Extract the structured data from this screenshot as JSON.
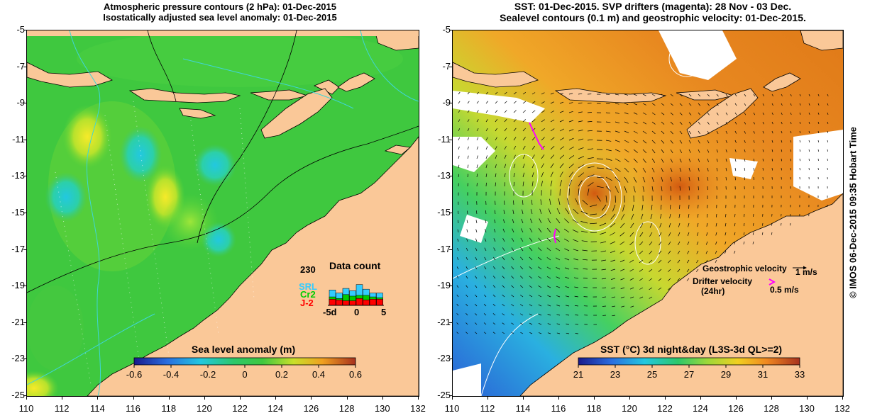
{
  "left_panel": {
    "title_line1": "Atmospheric pressure contours (2 hPa): 01-Dec-2015",
    "title_line2": "Isostatically adjusted sea level anomaly: 01-Dec-2015",
    "colorbar": {
      "title": "Sea level anomaly (m)",
      "ticks": [
        "-0.6",
        "-0.4",
        "-0.2",
        "0",
        "0.2",
        "0.4",
        "0.6"
      ]
    },
    "inset": {
      "title": "Data count",
      "max_label": "230",
      "series": [
        {
          "name": "SRL",
          "color": "#33ccff"
        },
        {
          "name": "Cr2",
          "color": "#00cc00"
        },
        {
          "name": "J-2",
          "color": "#ff0000"
        }
      ],
      "x_ticks": [
        "-5d",
        "0",
        "5"
      ],
      "bars": [
        {
          "j2": 40,
          "cr2": 55,
          "srl": 100
        },
        {
          "j2": 35,
          "cr2": 45,
          "srl": 80
        },
        {
          "j2": 30,
          "cr2": 70,
          "srl": 110
        },
        {
          "j2": 30,
          "cr2": 60,
          "srl": 95
        },
        {
          "j2": 45,
          "cr2": 65,
          "srl": 135
        },
        {
          "j2": 35,
          "cr2": 65,
          "srl": 105
        },
        {
          "j2": 40,
          "cr2": 55,
          "srl": 80
        },
        {
          "j2": 40,
          "cr2": 50,
          "srl": 80
        }
      ]
    }
  },
  "right_panel": {
    "title_line1": "SST: 01-Dec-2015. SVP drifters (magenta): 28 Nov - 03 Dec.",
    "title_line2": "Sealevel contours (0.1 m) and geostrophic velocity: 01-Dec-2015.",
    "colorbar": {
      "title": "SST (°C) 3d night&day (L3S-3d QL>=2)",
      "ticks": [
        "21",
        "23",
        "25",
        "27",
        "29",
        "31",
        "33"
      ]
    },
    "legend": {
      "geo_label": "Geostrophic velocity",
      "geo_value": "1 m/s",
      "drifter_label1": "Drifter velocity",
      "drifter_label2": "(24hr)",
      "drifter_value": "0.5 m/s"
    }
  },
  "axes": {
    "lat_ticks": [
      "-5",
      "-7",
      "-9",
      "-11",
      "-13",
      "-15",
      "-17",
      "-19",
      "-21",
      "-23",
      "-25"
    ],
    "lon_ticks": [
      "110",
      "112",
      "114",
      "116",
      "118",
      "120",
      "122",
      "124",
      "126",
      "128",
      "130",
      "132"
    ]
  },
  "credit": "© IMOS 06-Dec-2015 09:35 Hobart Time",
  "colors": {
    "land": "#fac898",
    "ocean_green": "#3fc83f",
    "coast_contour": "#3fd6d6"
  }
}
